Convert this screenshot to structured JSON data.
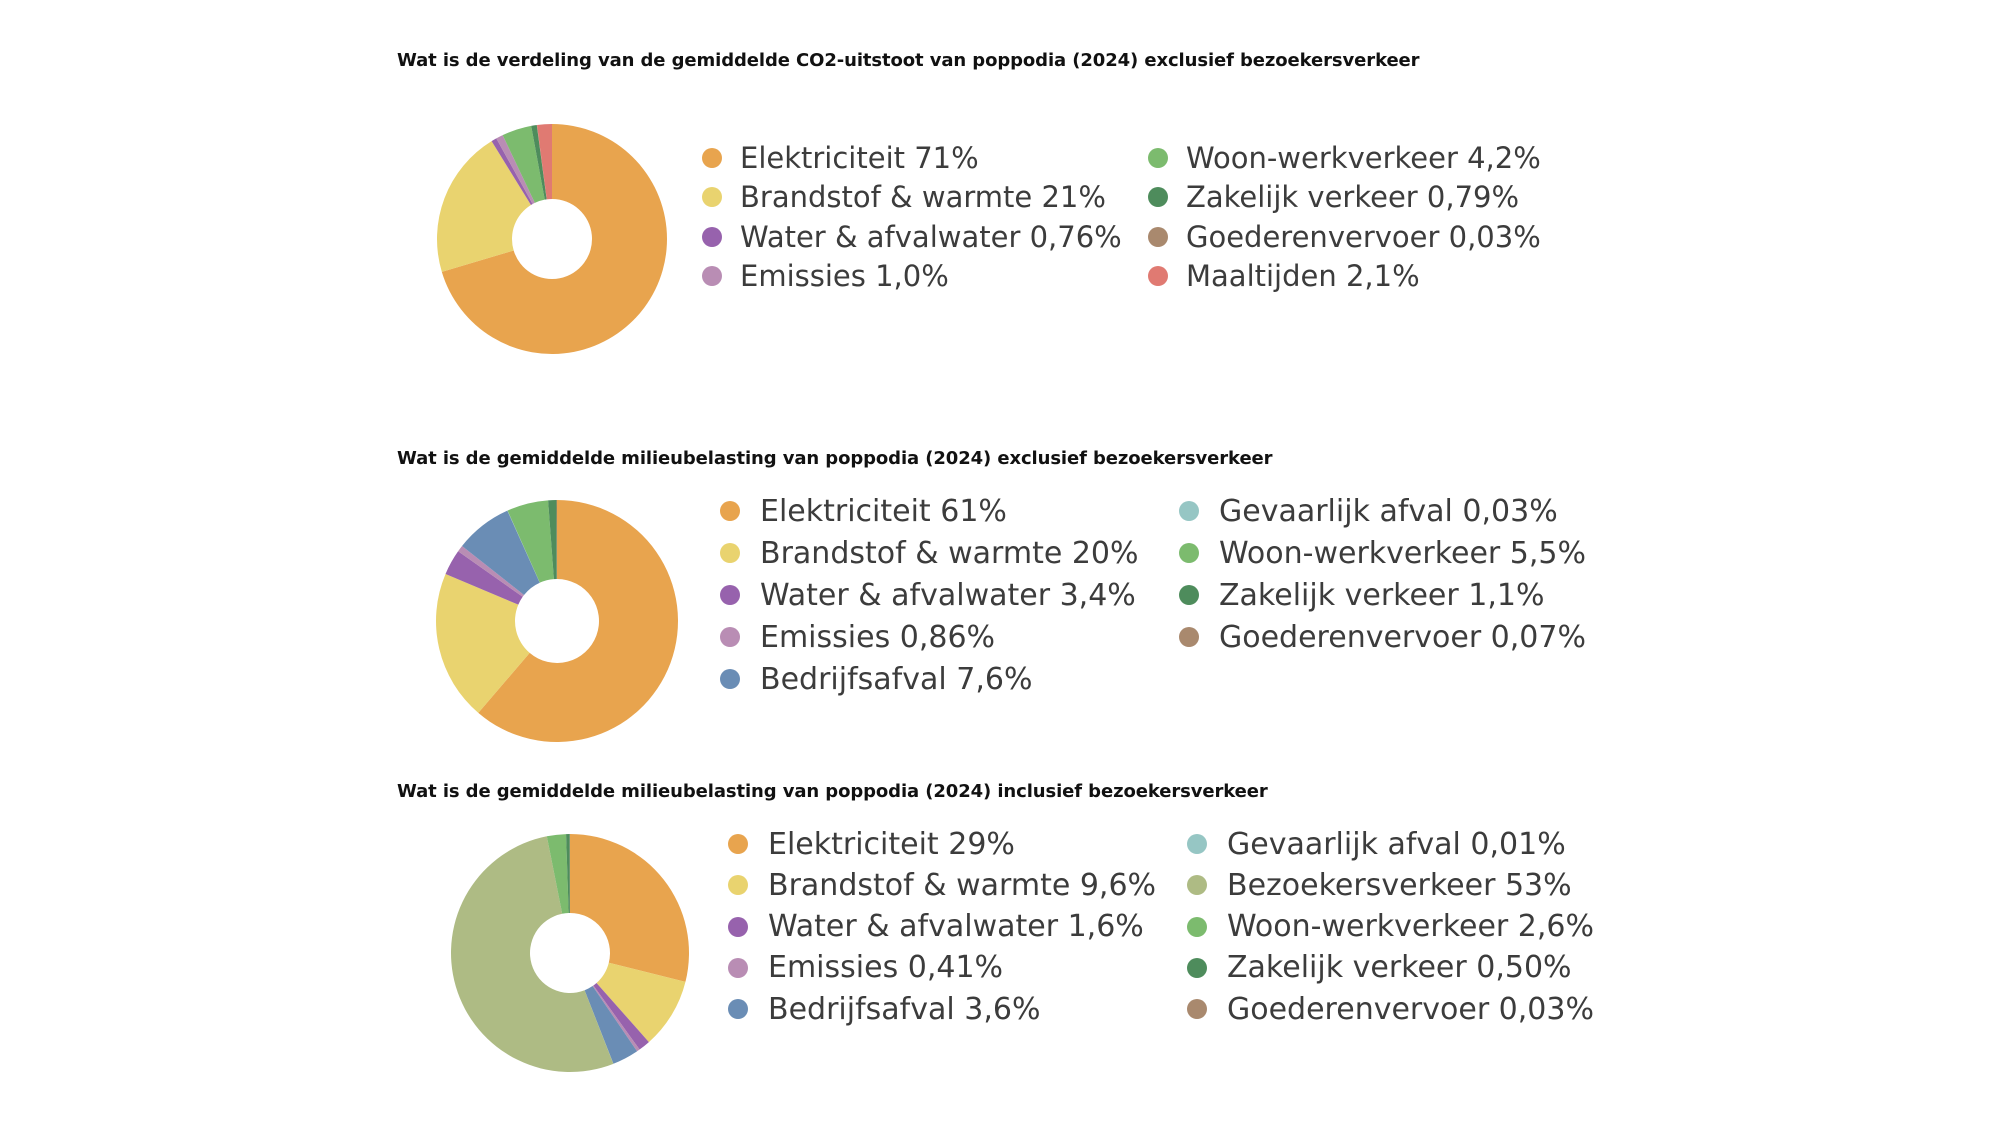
{
  "chart_data": [
    {
      "type": "pie",
      "title": "Wat is de verdeling van de gemiddelde CO2-uitstoot van poppodia (2024) exclusief bezoekersverkeer",
      "legend_columns": [
        [
          {
            "label": "Elektriciteit 71%",
            "color": "#E8A44E"
          },
          {
            "label": "Brandstof & warmte 21%",
            "color": "#E9D36F"
          },
          {
            "label": "Water & afvalwater 0,76%",
            "color": "#9762AD"
          },
          {
            "label": "Emissies 1,0%",
            "color": "#B98DB4"
          }
        ],
        [
          {
            "label": "Woon-werkverkeer 4,2%",
            "color": "#7CBB6E"
          },
          {
            "label": "Zakelijk verkeer 0,79%",
            "color": "#4E8C5C"
          },
          {
            "label": "Goederenvervoer 0,03%",
            "color": "#A9896E"
          },
          {
            "label": "Maaltijden 2,1%",
            "color": "#E07A72"
          }
        ]
      ],
      "slices": [
        {
          "name": "Elektriciteit",
          "value": 71,
          "color": "#E8A44E"
        },
        {
          "name": "Brandstof & warmte",
          "value": 21,
          "color": "#E9D36F"
        },
        {
          "name": "Water & afvalwater",
          "value": 0.76,
          "color": "#9762AD"
        },
        {
          "name": "Emissies",
          "value": 1.0,
          "color": "#B98DB4"
        },
        {
          "name": "Woon-werkverkeer",
          "value": 4.2,
          "color": "#7CBB6E"
        },
        {
          "name": "Zakelijk verkeer",
          "value": 0.79,
          "color": "#4E8C5C"
        },
        {
          "name": "Goederenvervoer",
          "value": 0.03,
          "color": "#A9896E"
        },
        {
          "name": "Maaltijden",
          "value": 2.1,
          "color": "#E07A72"
        }
      ]
    },
    {
      "type": "pie",
      "title": "Wat is de gemiddelde milieubelasting van poppodia (2024) exclusief bezoekersverkeer",
      "legend_columns": [
        [
          {
            "label": "Elektriciteit 61%",
            "color": "#E8A44E"
          },
          {
            "label": "Brandstof & warmte 20%",
            "color": "#E9D36F"
          },
          {
            "label": "Water & afvalwater 3,4%",
            "color": "#9762AD"
          },
          {
            "label": "Emissies 0,86%",
            "color": "#B98DB4"
          },
          {
            "label": "Bedrijfsafval 7,6%",
            "color": "#6A8DB5"
          }
        ],
        [
          {
            "label": "Gevaarlijk afval 0,03%",
            "color": "#96C6C4"
          },
          {
            "label": "Woon-werkverkeer 5,5%",
            "color": "#7CBB6E"
          },
          {
            "label": "Zakelijk verkeer 1,1%",
            "color": "#4E8C5C"
          },
          {
            "label": "Goederenvervoer 0,07%",
            "color": "#A9896E"
          }
        ]
      ],
      "slices": [
        {
          "name": "Elektriciteit",
          "value": 61,
          "color": "#E8A44E"
        },
        {
          "name": "Brandstof & warmte",
          "value": 20,
          "color": "#E9D36F"
        },
        {
          "name": "Water & afvalwater",
          "value": 3.4,
          "color": "#9762AD"
        },
        {
          "name": "Emissies",
          "value": 0.86,
          "color": "#B98DB4"
        },
        {
          "name": "Bedrijfsafval",
          "value": 7.6,
          "color": "#6A8DB5"
        },
        {
          "name": "Gevaarlijk afval",
          "value": 0.03,
          "color": "#96C6C4"
        },
        {
          "name": "Woon-werkverkeer",
          "value": 5.5,
          "color": "#7CBB6E"
        },
        {
          "name": "Zakelijk verkeer",
          "value": 1.1,
          "color": "#4E8C5C"
        },
        {
          "name": "Goederenvervoer",
          "value": 0.07,
          "color": "#A9896E"
        }
      ]
    },
    {
      "type": "pie",
      "title": "Wat is de gemiddelde milieubelasting van poppodia (2024) inclusief bezoekersverkeer",
      "legend_columns": [
        [
          {
            "label": "Elektriciteit 29%",
            "color": "#E8A44E"
          },
          {
            "label": "Brandstof & warmte 9,6%",
            "color": "#E9D36F"
          },
          {
            "label": "Water & afvalwater 1,6%",
            "color": "#9762AD"
          },
          {
            "label": "Emissies 0,41%",
            "color": "#B98DB4"
          },
          {
            "label": "Bedrijfsafval 3,6%",
            "color": "#6A8DB5"
          }
        ],
        [
          {
            "label": "Gevaarlijk afval 0,01%",
            "color": "#96C6C4"
          },
          {
            "label": "Bezoekersverkeer 53%",
            "color": "#AEBB84"
          },
          {
            "label": "Woon-werkverkeer 2,6%",
            "color": "#7CBB6E"
          },
          {
            "label": "Zakelijk verkeer 0,50%",
            "color": "#4E8C5C"
          },
          {
            "label": "Goederenvervoer 0,03%",
            "color": "#A9896E"
          }
        ]
      ],
      "slices": [
        {
          "name": "Elektriciteit",
          "value": 29,
          "color": "#E8A44E"
        },
        {
          "name": "Brandstof & warmte",
          "value": 9.6,
          "color": "#E9D36F"
        },
        {
          "name": "Water & afvalwater",
          "value": 1.6,
          "color": "#9762AD"
        },
        {
          "name": "Emissies",
          "value": 0.41,
          "color": "#B98DB4"
        },
        {
          "name": "Bedrijfsafval",
          "value": 3.6,
          "color": "#6A8DB5"
        },
        {
          "name": "Gevaarlijk afval",
          "value": 0.01,
          "color": "#96C6C4"
        },
        {
          "name": "Bezoekersverkeer",
          "value": 53,
          "color": "#AEBB84"
        },
        {
          "name": "Woon-werkverkeer",
          "value": 2.6,
          "color": "#7CBB6E"
        },
        {
          "name": "Zakelijk verkeer",
          "value": 0.5,
          "color": "#4E8C5C"
        },
        {
          "name": "Goederenvervoer",
          "value": 0.03,
          "color": "#A9896E"
        }
      ]
    }
  ]
}
